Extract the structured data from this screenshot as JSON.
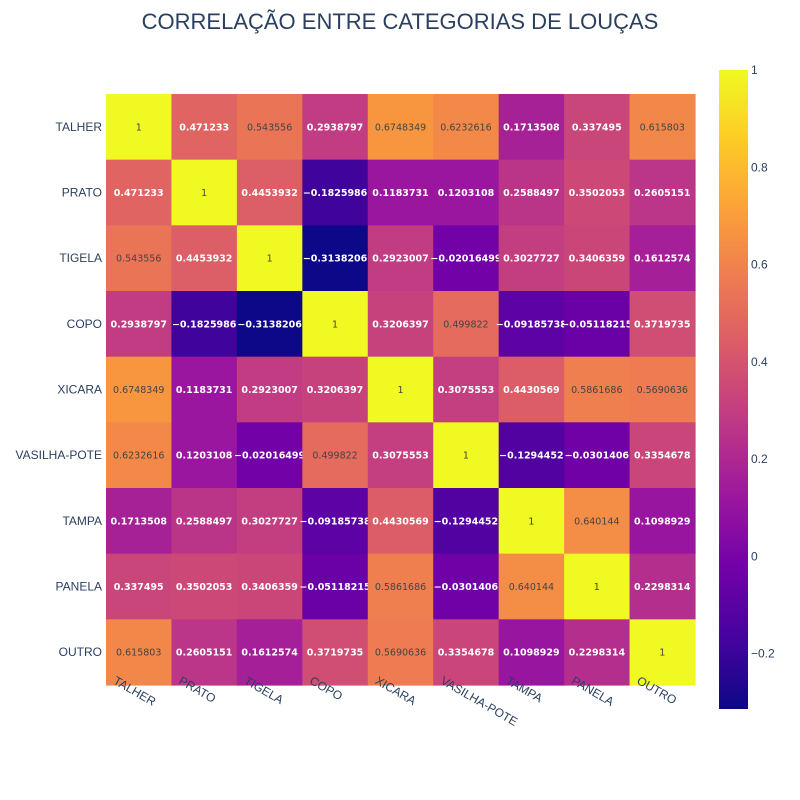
{
  "chart_data": {
    "type": "heatmap",
    "title": "CORRELAÇÃO ENTRE CATEGORIAS DE LOUÇAS",
    "x_categories": [
      "TALHER",
      "PRATO",
      "TIGELA",
      "COPO",
      "XICARA",
      "VASILHA-POTE",
      "TAMPA",
      "PANELA",
      "OUTRO"
    ],
    "y_categories": [
      "TALHER",
      "PRATO",
      "TIGELA",
      "COPO",
      "XICARA",
      "VASILHA-POTE",
      "TAMPA",
      "PANELA",
      "OUTRO"
    ],
    "z": [
      [
        1,
        0.471233,
        0.543556,
        0.2938797,
        0.6748349,
        0.6232616,
        0.1713508,
        0.337495,
        0.615803
      ],
      [
        0.471233,
        1,
        0.4453932,
        -0.1825986,
        0.1183731,
        0.1203108,
        0.2588497,
        0.3502053,
        0.2605151
      ],
      [
        0.543556,
        0.4453932,
        1,
        -0.3138206,
        0.2923007,
        -0.02016499,
        0.3027727,
        0.3406359,
        0.1612574
      ],
      [
        0.2938797,
        -0.1825986,
        -0.3138206,
        1,
        0.3206397,
        0.499822,
        -0.09185738,
        -0.05118215,
        0.3719735
      ],
      [
        0.6748349,
        0.1183731,
        0.2923007,
        0.3206397,
        1,
        0.3075553,
        0.4430569,
        0.5861686,
        0.5690636
      ],
      [
        0.6232616,
        0.1203108,
        -0.02016499,
        0.499822,
        0.3075553,
        1,
        -0.1294452,
        -0.0301406,
        0.3354678
      ],
      [
        0.1713508,
        0.2588497,
        0.3027727,
        -0.09185738,
        0.4430569,
        -0.1294452,
        1,
        0.640144,
        0.1098929
      ],
      [
        0.337495,
        0.3502053,
        0.3406359,
        -0.05118215,
        0.5861686,
        -0.0301406,
        0.640144,
        1,
        0.2298314
      ],
      [
        0.615803,
        0.2605151,
        0.1612574,
        0.3719735,
        0.5690636,
        0.3354678,
        0.1098929,
        0.2298314,
        1
      ]
    ],
    "labels": [
      [
        "1",
        "0.471233",
        "0.543556",
        "0.2938797",
        "0.6748349",
        "0.6232616",
        "0.1713508",
        "0.337495",
        "0.615803"
      ],
      [
        "0.471233",
        "1",
        "0.4453932",
        "−0.1825986",
        "0.1183731",
        "0.1203108",
        "0.2588497",
        "0.3502053",
        "0.2605151"
      ],
      [
        "0.543556",
        "0.4453932",
        "1",
        "−0.3138206",
        "0.2923007",
        "−0.02016499",
        "0.3027727",
        "0.3406359",
        "0.1612574"
      ],
      [
        "0.2938797",
        "−0.1825986",
        "−0.3138206",
        "1",
        "0.3206397",
        "0.499822",
        "−0.09185738",
        "−0.05118215",
        "0.3719735"
      ],
      [
        "0.6748349",
        "0.1183731",
        "0.2923007",
        "0.3206397",
        "1",
        "0.3075553",
        "0.4430569",
        "0.5861686",
        "0.5690636"
      ],
      [
        "0.6232616",
        "0.1203108",
        "−0.02016499",
        "0.499822",
        "0.3075553",
        "1",
        "−0.1294452",
        "−0.0301406",
        "0.3354678"
      ],
      [
        "0.1713508",
        "0.2588497",
        "0.3027727",
        "−0.09185738",
        "0.4430569",
        "−0.1294452",
        "1",
        "0.640144",
        "0.1098929"
      ],
      [
        "0.337495",
        "0.3502053",
        "0.3406359",
        "−0.05118215",
        "0.5861686",
        "−0.0301406",
        "0.640144",
        "1",
        "0.2298314"
      ],
      [
        "0.615803",
        "0.2605151",
        "0.1612574",
        "0.3719735",
        "0.5690636",
        "0.3354678",
        "0.1098929",
        "0.2298314",
        "1"
      ]
    ],
    "zmin": -0.3138206,
    "zmax": 1,
    "colorscale": [
      "#0d0887",
      "#46039f",
      "#7201a8",
      "#9c179e",
      "#bd3786",
      "#d8576b",
      "#ed7953",
      "#fb9f3a",
      "#fdca26",
      "#f0f921"
    ],
    "colorbar": {
      "tick_values": [
        -0.2,
        0,
        0.2,
        0.4,
        0.6,
        0.8,
        1
      ],
      "tick_labels": [
        "−0.2",
        "0",
        "0.2",
        "0.4",
        "0.6",
        "0.8",
        "1"
      ]
    },
    "legend": "colorbar-right",
    "grid": false
  }
}
